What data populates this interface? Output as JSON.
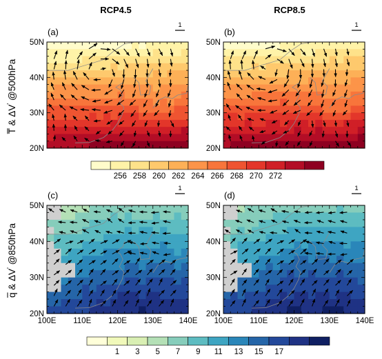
{
  "figure": {
    "column_titles": [
      "RCP4.5",
      "RCP8.5"
    ],
    "row_labels": [
      {
        "base": "T",
        "overbar": true,
        "suffix": " & ΔV",
        "prime": "'",
        "level": " @500hPa"
      },
      {
        "base": "q",
        "overbar": true,
        "suffix": " & ΔV",
        "prime": "'",
        "level": " @850hPa"
      }
    ],
    "panel_letters": [
      "(a)",
      "(b)",
      "(c)",
      "(d)"
    ],
    "reference_vector_label": "1",
    "lat_ticks": [
      "20N",
      "30N",
      "40N",
      "50N"
    ],
    "lon_ticks": [
      "100E",
      "110E",
      "120E",
      "130E",
      "140E"
    ]
  },
  "colorbars": [
    {
      "name": "temperature",
      "tick_labels": [
        "256",
        "258",
        "260",
        "262",
        "264",
        "266",
        "268",
        "270",
        "272"
      ],
      "colors": [
        "#fffccb",
        "#fff3a8",
        "#fee28a",
        "#fec96d",
        "#fdb057",
        "#fc9449",
        "#f8753b",
        "#ef5431",
        "#e3362a",
        "#d01f27",
        "#b30d26",
        "#8e0021"
      ]
    },
    {
      "name": "specific_humidity",
      "tick_labels": [
        "1",
        "3",
        "5",
        "7",
        "9",
        "11",
        "13",
        "15",
        "17"
      ],
      "colors": [
        "#ffffd9",
        "#f1f9ba",
        "#d9efb3",
        "#b4e0b6",
        "#86cdbb",
        "#5dbcc1",
        "#3ea5c2",
        "#2a86b9",
        "#2565a8",
        "#23489a",
        "#1f3284",
        "#0f1f62"
      ]
    }
  ],
  "chart_data": [
    {
      "type": "heatmap",
      "panel": "(a)",
      "title": "RCP4.5",
      "ylabel": "T & ΔV' @500hPa",
      "variable": "T",
      "xlim": [
        "100E",
        "140E"
      ],
      "ylim": [
        "20N",
        "50N"
      ],
      "colorbar_range": [
        255,
        273
      ],
      "pattern": "warm south, cool north, anticyclonic vector circulation centred near 115E 42N"
    },
    {
      "type": "heatmap",
      "panel": "(b)",
      "title": "RCP8.5",
      "variable": "T",
      "xlim": [
        "100E",
        "140E"
      ],
      "ylim": [
        "20N",
        "50N"
      ],
      "colorbar_range": [
        255,
        273
      ],
      "pattern": "warm south, cool north, anticyclonic vector circulation centred near 113E 43N"
    },
    {
      "type": "heatmap",
      "panel": "(c)",
      "title": "RCP4.5",
      "ylabel": "q & ΔV' @850hPa",
      "variable": "q",
      "xlim": [
        "100E",
        "140E"
      ],
      "ylim": [
        "20N",
        "50N"
      ],
      "colorbar_range": [
        0,
        18
      ],
      "pattern": "moist south-east, dry north-west, terrain masked over Tibet"
    },
    {
      "type": "heatmap",
      "panel": "(d)",
      "title": "RCP8.5",
      "variable": "q",
      "xlim": [
        "100E",
        "140E"
      ],
      "ylim": [
        "20N",
        "50N"
      ],
      "colorbar_range": [
        0,
        18
      ],
      "pattern": "moist south-east, dry north-west, terrain masked over Tibet"
    }
  ]
}
